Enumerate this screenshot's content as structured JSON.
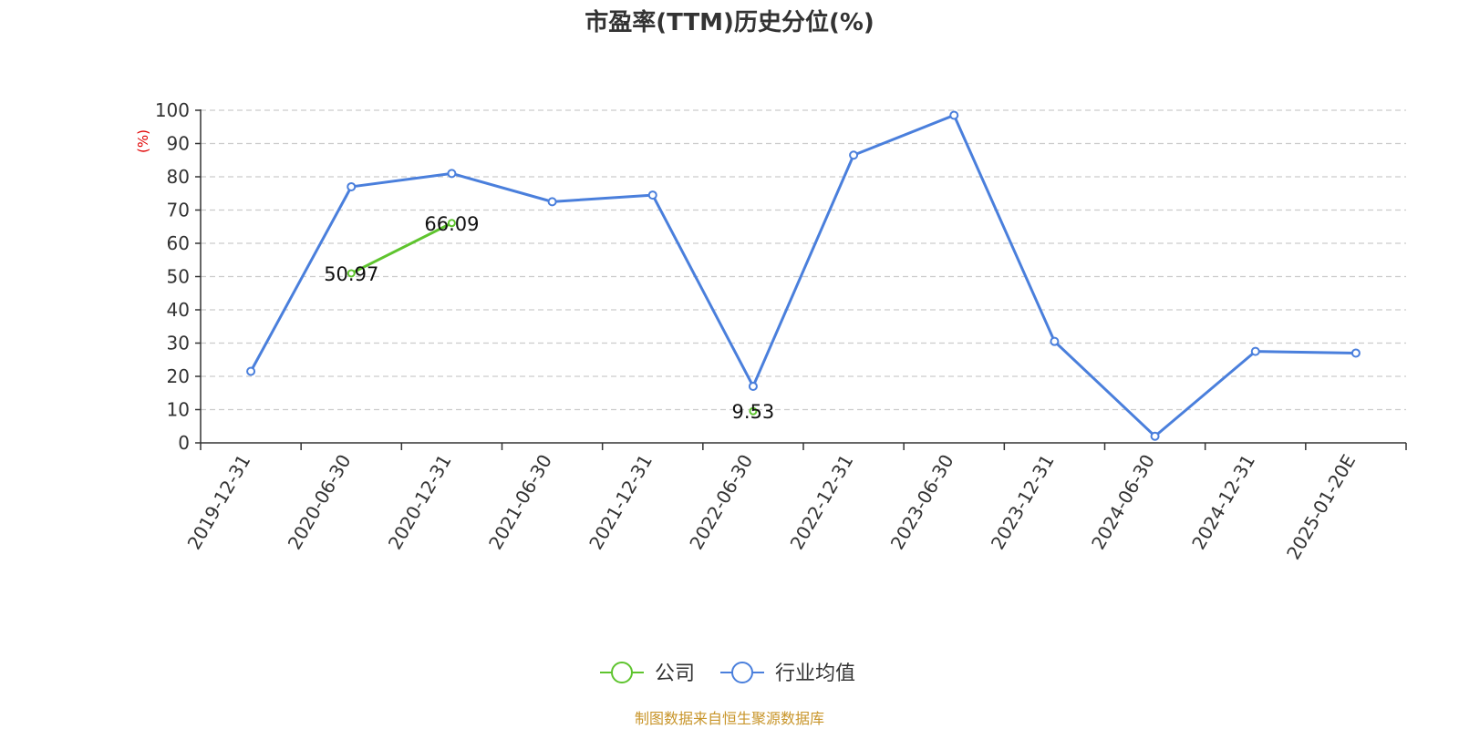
{
  "chart_data": {
    "type": "line",
    "title": "市盈率(TTM)历史分位(%)",
    "ylabel": "(%)",
    "ylim": [
      0,
      100
    ],
    "yticks": [
      "0",
      "10",
      "20",
      "30",
      "40",
      "50",
      "60",
      "70",
      "80",
      "90",
      "100"
    ],
    "categories": [
      "2019-12-31",
      "2020-06-30",
      "2020-12-31",
      "2021-06-30",
      "2021-12-31",
      "2022-06-30",
      "2022-12-31",
      "2023-06-30",
      "2023-12-31",
      "2024-06-30",
      "2024-12-31",
      "2025-01-20E"
    ],
    "grid": true,
    "legend_position": "bottom",
    "series": [
      {
        "name": "公司",
        "color": "#5ec42e",
        "values": [
          null,
          50.97,
          66.09,
          null,
          null,
          9.53,
          null,
          null,
          null,
          null,
          null,
          null
        ],
        "labels": [
          "",
          "50.97",
          "66.09",
          "",
          "",
          "9.53",
          "",
          "",
          "",
          "",
          "",
          ""
        ]
      },
      {
        "name": "行业均值",
        "color": "#4a7fdc",
        "values": [
          21.5,
          77.0,
          81.0,
          72.5,
          74.5,
          17.0,
          86.5,
          98.5,
          30.5,
          2.0,
          27.5,
          27.0
        ]
      }
    ],
    "source": "制图数据来自恒生聚源数据库",
    "source_color": "#c8952a",
    "ylabel_color": "#e00000"
  }
}
